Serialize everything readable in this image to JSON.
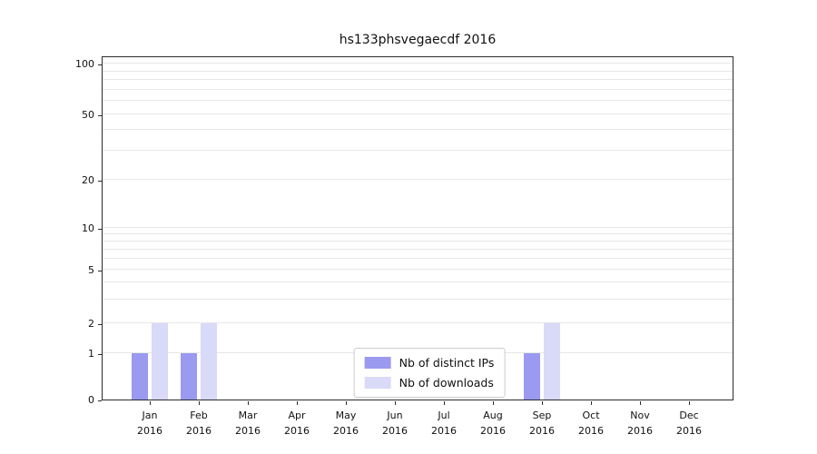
{
  "title": "hs133phsvegaecdf 2016",
  "chart_data": {
    "type": "bar",
    "title": "hs133phsvegaecdf 2016",
    "categories": [
      "Jan",
      "Feb",
      "Mar",
      "Apr",
      "May",
      "Jun",
      "Jul",
      "Aug",
      "Sep",
      "Oct",
      "Nov",
      "Dec"
    ],
    "x_tick_year": "2016",
    "series": [
      {
        "name": "Nb of distinct IPs",
        "color": "#9a9af0",
        "values": [
          1,
          1,
          0,
          0,
          0,
          0,
          0,
          0,
          1,
          0,
          0,
          0
        ]
      },
      {
        "name": "Nb of downloads",
        "color": "#d9d9f8",
        "values": [
          2,
          2,
          0,
          0,
          0,
          0,
          0,
          0,
          2,
          0,
          0,
          0
        ]
      }
    ],
    "yscale": "symlog",
    "y_ticks": [
      0,
      1,
      2,
      5,
      10,
      20,
      50,
      100
    ],
    "ylim": [
      0,
      100
    ],
    "grid": true,
    "legend_position": "lower center"
  }
}
